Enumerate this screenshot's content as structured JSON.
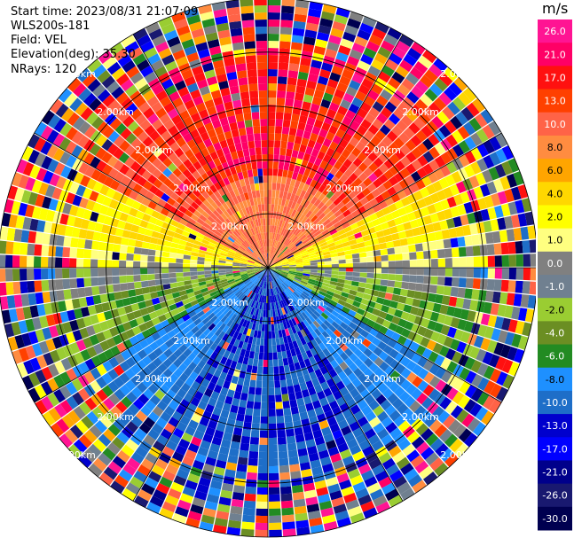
{
  "header": {
    "start_time": "Start time: 2023/08/31 21:07:09",
    "instrument": "WLS200s-181",
    "field": "Field: VEL",
    "elevation": "Elevation(deg): 35.30",
    "nrays": "NRays: 120"
  },
  "chart_data": {
    "type": "heatmap",
    "projection": "polar (PPI)",
    "field": "VEL",
    "n_rays": 120,
    "range_rings_km": [
      1,
      2,
      3,
      4,
      5
    ],
    "range_label": "2.00km",
    "spokes_deg": [
      0,
      30,
      60,
      90,
      120,
      150,
      180,
      210,
      240,
      270,
      300,
      330
    ],
    "colorbar": {
      "unit": "m/s",
      "tick_labels": [
        "26.0",
        "21.0",
        "17.0",
        "13.0",
        "10.0",
        "8.0",
        "6.0",
        "4.0",
        "2.0",
        "1.0",
        "0.0",
        "-1.0",
        "-2.0",
        "-4.0",
        "-6.0",
        "-8.0",
        "-10.0",
        "-13.0",
        "-17.0",
        "-21.0",
        "-26.0",
        "-30.0"
      ],
      "colors": [
        "#ff1493",
        "#ff0066",
        "#ff1010",
        "#ff4000",
        "#ff6347",
        "#ff8c40",
        "#ffa500",
        "#ffd700",
        "#ffff00",
        "#ffff80",
        "#808080",
        "#708090",
        "#9acd32",
        "#6b8e23",
        "#228b22",
        "#1e90ff",
        "#1e6ec8",
        "#0000cd",
        "#0000ff",
        "#00008b",
        "#191970",
        "#000050"
      ]
    },
    "pattern": "positive (toward/away) velocities in northern half (red-orange-yellow), near zero along east-west axis (gray), negative velocities in southern half (green-blue); outer ranges noisy"
  }
}
